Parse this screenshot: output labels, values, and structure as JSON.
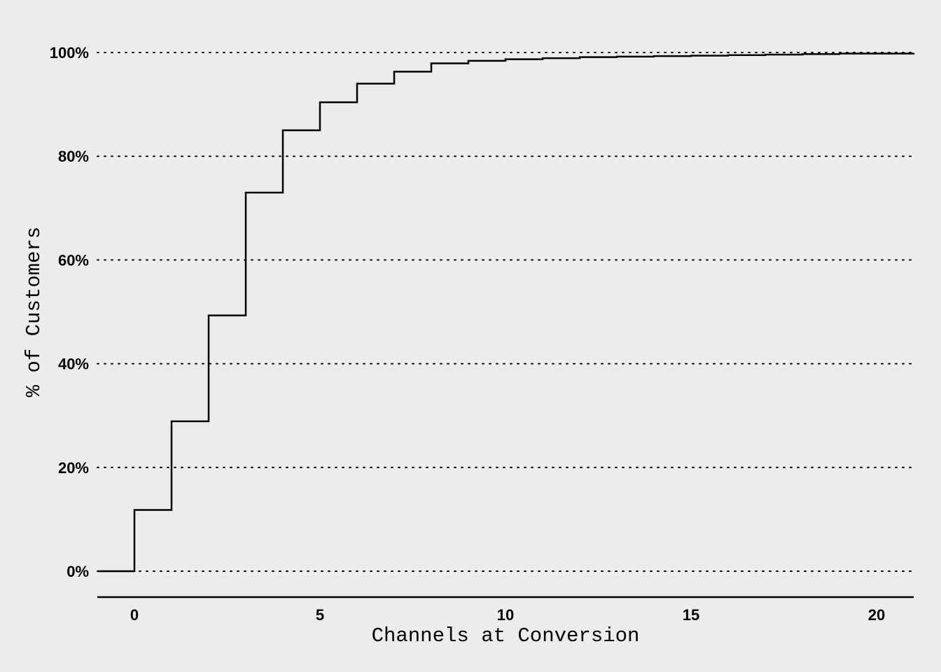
{
  "chart_data": {
    "type": "line",
    "step": true,
    "title": "",
    "xlabel": "Channels at Conversion",
    "ylabel": "% of Customers",
    "xlim": [
      -1,
      21
    ],
    "ylim": [
      0,
      1
    ],
    "x_ticks": [
      0,
      5,
      10,
      15,
      20
    ],
    "x_tick_labels": [
      "0",
      "5",
      "10",
      "15",
      "20"
    ],
    "y_ticks": [
      0,
      0.2,
      0.4,
      0.6,
      0.8,
      1.0
    ],
    "y_tick_labels": [
      "0%",
      "20%",
      "40%",
      "60%",
      "80%",
      "100%"
    ],
    "grid": "horizontal-dotted",
    "legend": "none",
    "x": [
      -1,
      0,
      1,
      2,
      3,
      4,
      5,
      6,
      7,
      8,
      9,
      10,
      11,
      12,
      13,
      14,
      15,
      16,
      17,
      18,
      19,
      20,
      21
    ],
    "values": [
      0.0,
      0.118,
      0.289,
      0.493,
      0.73,
      0.85,
      0.904,
      0.94,
      0.963,
      0.979,
      0.984,
      0.987,
      0.989,
      0.991,
      0.992,
      0.993,
      0.994,
      0.995,
      0.996,
      0.997,
      0.998,
      0.998,
      0.999
    ]
  }
}
